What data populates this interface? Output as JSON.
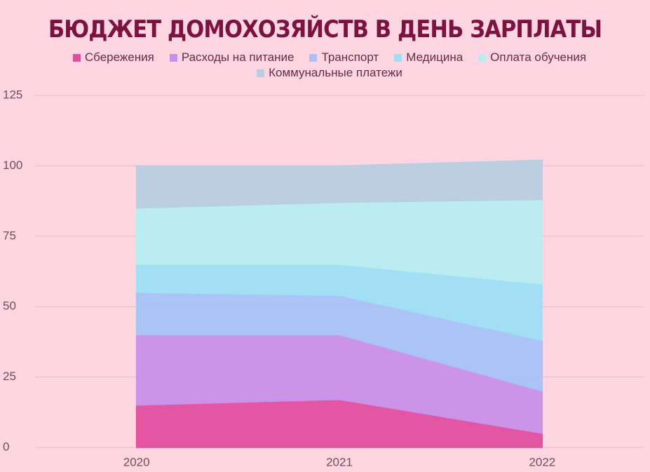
{
  "chart_data": {
    "type": "area",
    "stacked": true,
    "title": "БЮДЖЕТ ДОМОХОЗЯЙСТВ В ДЕНЬ ЗАРПЛАТЫ",
    "categories": [
      "2020",
      "2021",
      "2022"
    ],
    "series": [
      {
        "name": "Сбережения",
        "color": "#e14f9f",
        "values": [
          15,
          17,
          5
        ]
      },
      {
        "name": "Расходы на питание",
        "color": "#c890e8",
        "values": [
          25,
          23,
          15
        ]
      },
      {
        "name": "Транспорт",
        "color": "#a6c2f6",
        "values": [
          15,
          14,
          18
        ]
      },
      {
        "name": "Медицина",
        "color": "#9ddff6",
        "values": [
          10,
          11,
          20
        ]
      },
      {
        "name": "Оплата обучения",
        "color": "#b6edf1",
        "values": [
          20,
          22,
          30
        ]
      },
      {
        "name": "Коммунальные платежи",
        "color": "#b7cfdf",
        "values": [
          15,
          13,
          14
        ]
      }
    ],
    "ylim": [
      0,
      125
    ],
    "yticks": [
      0,
      25,
      50,
      75,
      100,
      125
    ],
    "grid": true
  }
}
